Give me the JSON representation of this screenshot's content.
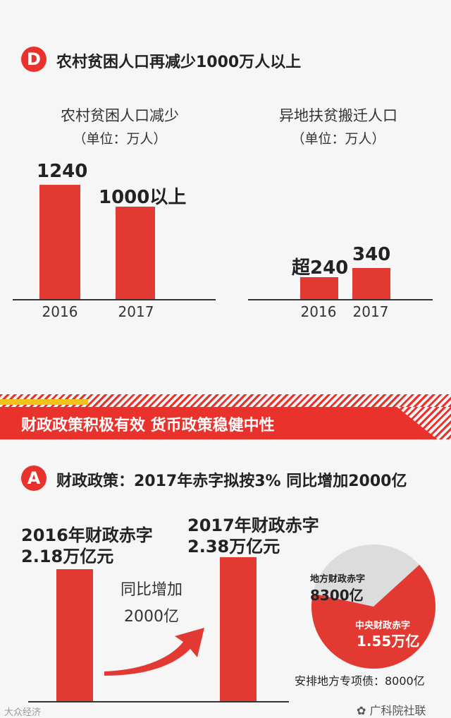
{
  "section_d": {
    "badge": "D",
    "title": "农村贫困人口再减少1000万人以上"
  },
  "chart_data": [
    {
      "type": "bar",
      "title": "农村贫困人口减少",
      "unit": "（单位：万人）",
      "categories": [
        "2016",
        "2017"
      ],
      "values": [
        1240,
        1000
      ],
      "value_labels": [
        "1240",
        "1000以上"
      ],
      "ylim": [
        0,
        1400
      ],
      "color": "#e23a32"
    },
    {
      "type": "bar",
      "title": "异地扶贫搬迁人口",
      "unit": "（单位：万人）",
      "categories": [
        "2016",
        "2017"
      ],
      "values": [
        240,
        340
      ],
      "value_labels": [
        "超240",
        "340"
      ],
      "ylim": [
        0,
        1400
      ],
      "color": "#e23a32"
    },
    {
      "type": "bar",
      "categories": [
        "2016",
        "2017"
      ],
      "values": [
        2.18,
        2.38
      ],
      "color": "#e23a32"
    },
    {
      "type": "pie",
      "slices": [
        {
          "label": "地方财政赤字",
          "value_label": "8300亿",
          "value": 0.83,
          "color": "#dcdcdc"
        },
        {
          "label": "中央财政赤字",
          "value_label": "1.55万亿",
          "value": 1.55,
          "color": "#e23a32"
        }
      ]
    }
  ],
  "banner": {
    "title": "财政政策积极有效 货币政策稳健中性"
  },
  "section_a": {
    "badge": "A",
    "title": "财政政策：2017年赤字拟按3% 同比增加2000亿",
    "label_2016_line1": "2016年财政赤字",
    "label_2016_line2": "2.18万亿元",
    "label_2017_line1": "2017年财政赤字",
    "label_2017_line2": "2.38万亿元",
    "increase_line1": "同比增加",
    "increase_line2": "2000亿",
    "note": "安排地方专项债：8000亿"
  },
  "watermarks": {
    "left": "大众经济",
    "right": "广科院社联"
  }
}
